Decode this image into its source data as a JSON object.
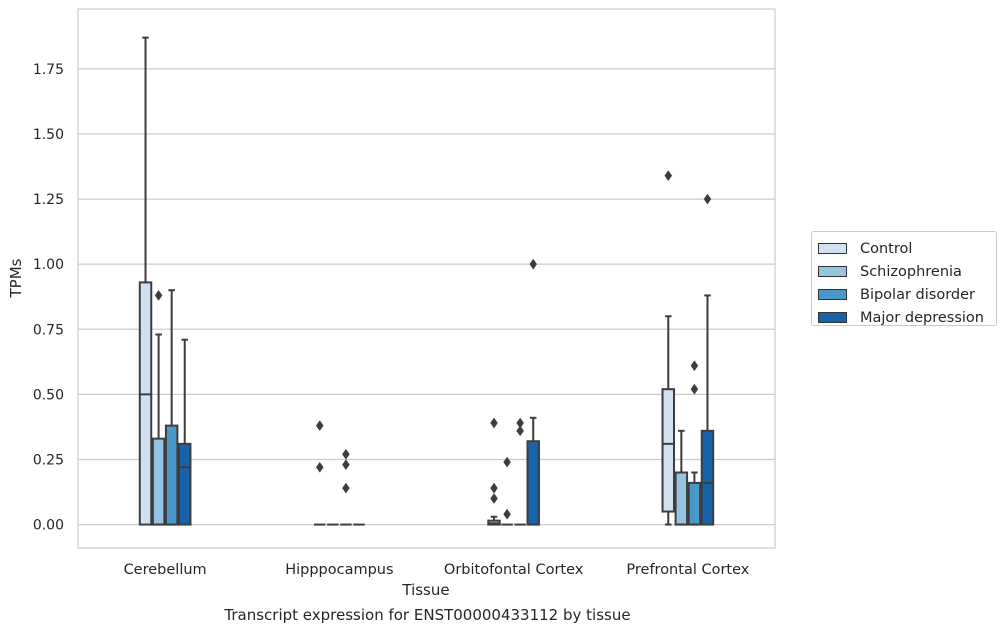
{
  "chart_data": {
    "type": "box",
    "caption": "Transcript expression for ENST00000433112 by tissue",
    "xlabel": "Tissue",
    "ylabel": "TPMs",
    "ylim": [
      -0.09,
      1.98
    ],
    "yticks": [
      "0.00",
      "0.25",
      "0.50",
      "0.75",
      "1.00",
      "1.25",
      "1.50",
      "1.75"
    ],
    "grid": true,
    "categories": [
      "Cerebellum",
      "Hipppocampus",
      "Orbitofontal Cortex",
      "Prefrontal Cortex"
    ],
    "legend_position": "right",
    "series": [
      {
        "name": "Control",
        "color": "#d0e1f2",
        "boxes": [
          {
            "q1": 0,
            "median": 0.5,
            "q3": 0.93,
            "whisker_low": 0,
            "whisker_high": 1.87,
            "outliers": []
          },
          {
            "q1": 0,
            "median": 0,
            "q3": 0,
            "whisker_low": 0,
            "whisker_high": 0,
            "outliers": [
              0.38,
              0.22
            ]
          },
          {
            "q1": 0,
            "median": 0.005,
            "q3": 0.015,
            "whisker_low": 0,
            "whisker_high": 0.03,
            "outliers": [
              0.39,
              0.14,
              0.1
            ]
          },
          {
            "q1": 0.05,
            "median": 0.31,
            "q3": 0.52,
            "whisker_low": 0,
            "whisker_high": 0.8,
            "outliers": [
              1.34
            ]
          }
        ]
      },
      {
        "name": "Schizophrenia",
        "color": "#94c4df",
        "boxes": [
          {
            "q1": 0,
            "median": 0,
            "q3": 0.33,
            "whisker_low": 0,
            "whisker_high": 0.73,
            "outliers": [
              0.88
            ]
          },
          {
            "q1": 0,
            "median": 0,
            "q3": 0,
            "whisker_low": 0,
            "whisker_high": 0,
            "outliers": []
          },
          {
            "q1": 0,
            "median": 0,
            "q3": 0,
            "whisker_low": 0,
            "whisker_high": 0,
            "outliers": [
              0.24,
              0.04
            ]
          },
          {
            "q1": 0,
            "median": 0,
            "q3": 0.2,
            "whisker_low": 0,
            "whisker_high": 0.36,
            "outliers": []
          }
        ]
      },
      {
        "name": "Bipolar disorder",
        "color": "#4a98c9",
        "boxes": [
          {
            "q1": 0,
            "median": 0,
            "q3": 0.38,
            "whisker_low": 0,
            "whisker_high": 0.9,
            "outliers": []
          },
          {
            "q1": 0,
            "median": 0,
            "q3": 0,
            "whisker_low": 0,
            "whisker_high": 0,
            "outliers": [
              0.27,
              0.23,
              0.14
            ]
          },
          {
            "q1": 0,
            "median": 0,
            "q3": 0,
            "whisker_low": 0,
            "whisker_high": 0,
            "outliers": [
              0.39,
              0.36
            ]
          },
          {
            "q1": 0,
            "median": 0,
            "q3": 0.16,
            "whisker_low": 0,
            "whisker_high": 0.2,
            "outliers": [
              0.61,
              0.52
            ]
          }
        ]
      },
      {
        "name": "Major depression",
        "color": "#1764ab",
        "boxes": [
          {
            "q1": 0,
            "median": 0.22,
            "q3": 0.31,
            "whisker_low": 0,
            "whisker_high": 0.71,
            "outliers": []
          },
          {
            "q1": 0,
            "median": 0,
            "q3": 0,
            "whisker_low": 0,
            "whisker_high": 0,
            "outliers": []
          },
          {
            "q1": 0,
            "median": 0,
            "q3": 0.32,
            "whisker_low": 0,
            "whisker_high": 0.41,
            "outliers": [
              1.0
            ]
          },
          {
            "q1": 0,
            "median": 0.16,
            "q3": 0.36,
            "whisker_low": 0,
            "whisker_high": 0.88,
            "outliers": [
              1.25
            ]
          }
        ]
      }
    ]
  }
}
